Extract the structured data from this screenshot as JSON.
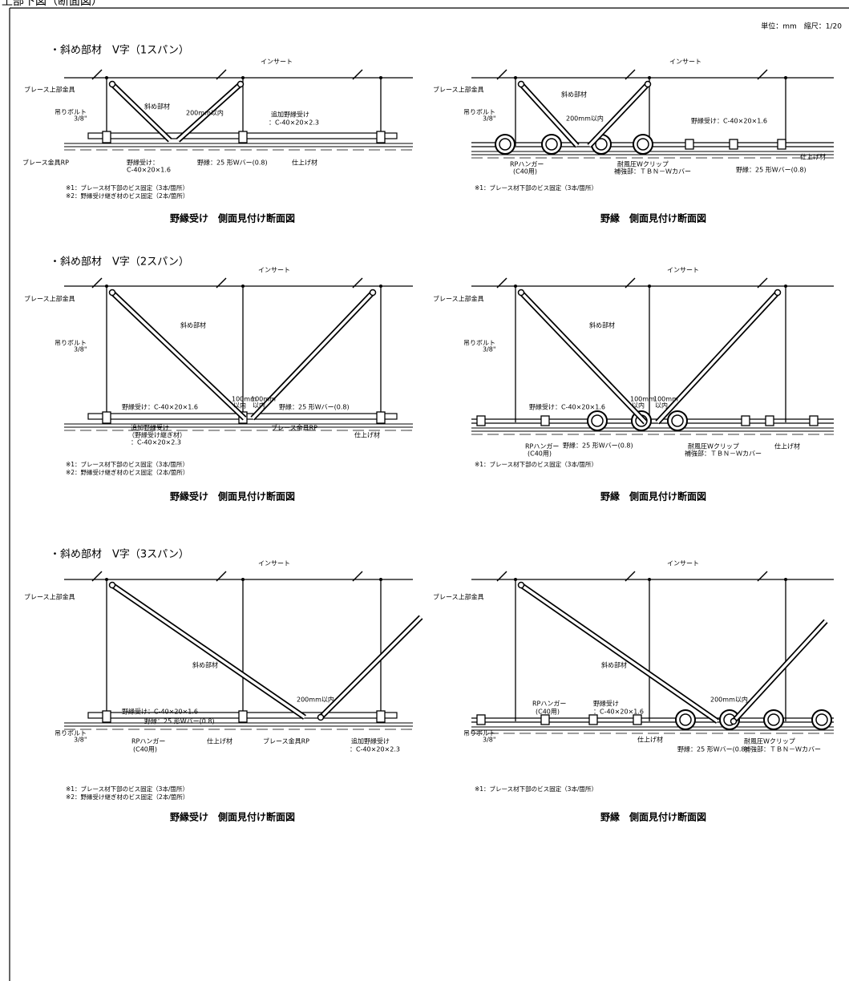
{
  "header": {
    "title": "上部下図（断面図）",
    "scale": "単位：mm　縮尺：1/20"
  },
  "sections": [
    {
      "title": "・斜め部材　V字（1スパン）",
      "panels": [
        {
          "labels": [
            "インサート",
            "ブレース上部金具",
            "斜め部材",
            "吊りボルト",
            "3/8\"",
            "200mm以内",
            "追加野縁受け",
            "：C-40×20×2.3",
            "ブレース金具RP",
            "野縁受け：",
            "C-40×20×1.6",
            "野縁：25 形Wバー(0.8)",
            "仕上げ材"
          ],
          "notes": [
            "※1：ブレース材下部のビス固定（3本/箇所）",
            "※2：野縁受け継ぎ材のビス固定（2本/箇所）"
          ],
          "caption": "野縁受け　側面見付け断面図"
        },
        {
          "labels": [
            "インサート",
            "ブレース上部金具",
            "斜め部材",
            "吊りボルト",
            "3/8\"",
            "200mm以内",
            "野縁受け：C-40×20×1.6",
            "仕上げ材",
            "RPハンガー",
            "(C40用)",
            "耐風圧Wクリップ",
            "補強部：ＴＢＮ－Ｗカバー",
            "野縁：25 形Wバー(0.8)"
          ],
          "notes": [
            "※1：ブレース材下部のビス固定（3本/箇所）"
          ],
          "caption": "野縁　側面見付け断面図"
        }
      ]
    },
    {
      "title": "・斜め部材　V字（2スパン）",
      "panels": [
        {
          "labels": [
            "インサート",
            "ブレース上部金具",
            "斜め部材",
            "吊りボルト",
            "3/8\"",
            "100mm",
            "以内",
            "100mm",
            "以内",
            "野縁受け：C-40×20×1.6",
            "野縁：25 形Wバー(0.8)",
            "追加野縁受け",
            "（野縁受け継ぎ材）",
            "：C-40×20×2.3",
            "ブレース金具RP",
            "仕上げ材"
          ],
          "notes": [
            "※1：ブレース材下部のビス固定（3本/箇所）",
            "※2：野縁受け継ぎ材のビス固定（2本/箇所）"
          ],
          "caption": "野縁受け　側面見付け断面図"
        },
        {
          "labels": [
            "インサート",
            "ブレース上部金具",
            "斜め部材",
            "吊りボルト",
            "3/8\"",
            "100mm",
            "以内",
            "100mm",
            "以内",
            "野縁受け：C-40×20×1.6",
            "RPハンガー",
            "(C40用)",
            "野縁：25 形Wバー(0.8)",
            "耐風圧Wクリップ",
            "補強部：ＴＢＮ－Ｗカバー",
            "仕上げ材"
          ],
          "notes": [
            "※1：ブレース材下部のビス固定（3本/箇所）"
          ],
          "caption": "野縁　側面見付け断面図"
        }
      ]
    },
    {
      "title": "・斜め部材　V字（3スパン）",
      "panels": [
        {
          "labels": [
            "インサート",
            "ブレース上部金具",
            "斜め部材",
            "吊りボルト",
            "3/8\"",
            "200mm以内",
            "野縁受け：C-40×20×1.6",
            "野縁：25 形Wバー(0.8)",
            "RPハンガー",
            "(C40用)",
            "仕上げ材",
            "ブレース金具RP",
            "追加野縁受け",
            "：C-40×20×2.3"
          ],
          "notes": [
            "※1：ブレース材下部のビス固定（3本/箇所）",
            "※2：野縁受け継ぎ材のビス固定（2本/箇所）"
          ],
          "caption": "野縁受け　側面見付け断面図"
        },
        {
          "labels": [
            "インサート",
            "ブレース上部金具",
            "斜め部材",
            "吊りボルト",
            "3/8\"",
            "200mm以内",
            "RPハンガー",
            "(C40用)",
            "野縁受け",
            "：C-40×20×1.6",
            "仕上げ材",
            "耐風圧Wクリップ",
            "補強部：ＴＢＮ－Ｗカバー",
            "野縁：25 形Wバー(0.8)"
          ],
          "notes": [
            "※1：ブレース材下部のビス固定（3本/箇所）"
          ],
          "caption": "野縁　側面見付け断面図"
        }
      ]
    }
  ]
}
